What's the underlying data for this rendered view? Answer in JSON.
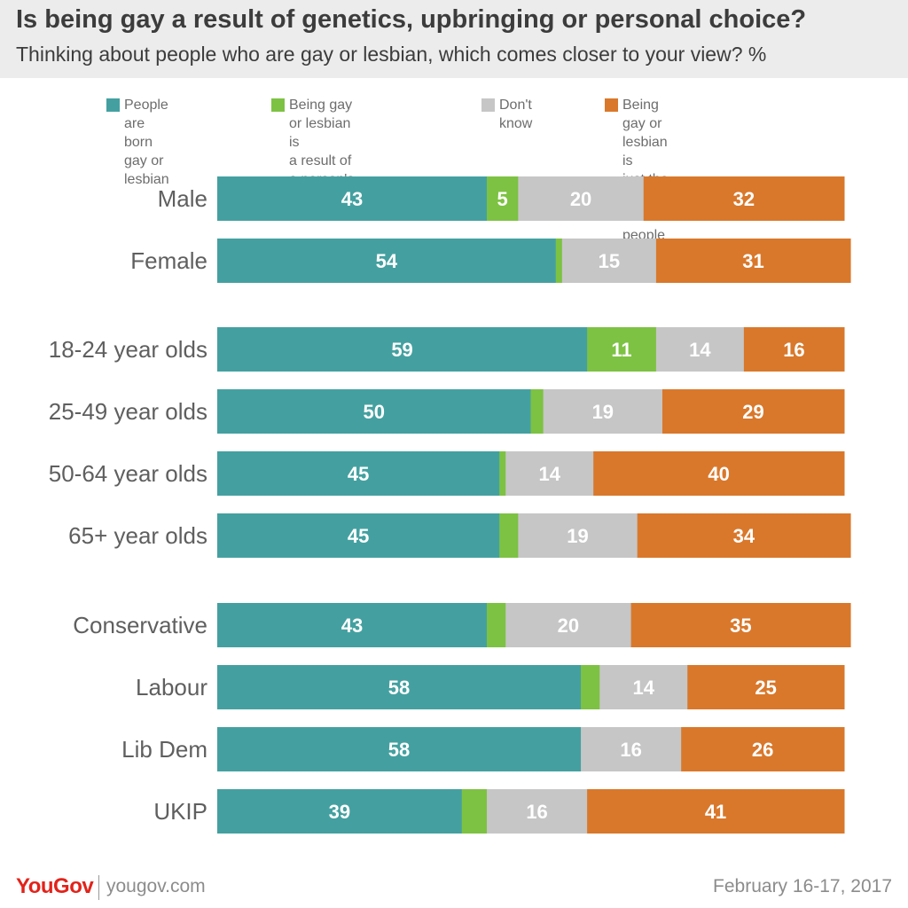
{
  "title": "Is being gay a result of genetics, upbringing or personal choice?",
  "subtitle": "Thinking about people who are gay or lesbian, which comes closer to your view? %",
  "colors": {
    "born": "#44a0a0",
    "upbringing": "#7dc243",
    "dont_know": "#c6c6c6",
    "choice": "#d9782b",
    "label_text": "#5f5f5f",
    "value_text": "#ffffff"
  },
  "legend": [
    {
      "label": "People are born\ngay or lesbian",
      "color_key": "born"
    },
    {
      "label": "Being gay or lesbian is\na result of a person's\nupbringing",
      "color_key": "upbringing"
    },
    {
      "label": "Don't know",
      "color_key": "dont_know"
    },
    {
      "label": "Being gay or lesbian is\njust the way some\npeople choose to live",
      "color_key": "choice"
    }
  ],
  "chart_data": {
    "type": "bar",
    "orientation": "horizontal",
    "stacked": true,
    "unit": "%",
    "categories": [
      "Male",
      "Female",
      "18-24 year olds",
      "25-49 year olds",
      "50-64 year olds",
      "65+ year olds",
      "Conservative",
      "Labour",
      "Lib Dem",
      "UKIP"
    ],
    "groups": [
      [
        "Male",
        "Female"
      ],
      [
        "18-24 year olds",
        "25-49 year olds",
        "50-64 year olds",
        "65+ year olds"
      ],
      [
        "Conservative",
        "Labour",
        "Lib Dem",
        "UKIP"
      ]
    ],
    "series": [
      {
        "name": "People are born gay or lesbian",
        "color_key": "born",
        "values": [
          43,
          54,
          59,
          50,
          45,
          45,
          43,
          58,
          58,
          39
        ]
      },
      {
        "name": "Being gay or lesbian is a result of a person's upbringing",
        "color_key": "upbringing",
        "values": [
          5,
          1,
          11,
          2,
          1,
          3,
          3,
          3,
          0,
          4
        ]
      },
      {
        "name": "Don't know",
        "color_key": "dont_know",
        "values": [
          20,
          15,
          14,
          19,
          14,
          19,
          20,
          14,
          16,
          16
        ]
      },
      {
        "name": "Being gay or lesbian is just the way some people choose to live",
        "color_key": "choice",
        "values": [
          32,
          31,
          16,
          29,
          40,
          34,
          35,
          25,
          26,
          41
        ]
      }
    ],
    "data_labels": [
      [
        "43",
        "5",
        "20",
        "32"
      ],
      [
        "54",
        "",
        "15",
        "31"
      ],
      [
        "59",
        "11",
        "14",
        "16"
      ],
      [
        "50",
        "",
        "19",
        "29"
      ],
      [
        "45",
        "",
        "14",
        "40"
      ],
      [
        "45",
        "",
        "19",
        "34"
      ],
      [
        "43",
        "",
        "20",
        "35"
      ],
      [
        "58",
        "",
        "14",
        "25"
      ],
      [
        "58",
        "",
        "16",
        "26"
      ],
      [
        "39",
        "",
        "16",
        "41"
      ]
    ],
    "legend_position": "top",
    "grid": false
  },
  "footer": {
    "logo": "YouGov",
    "url": "yougov.com",
    "date": "February 16-17, 2017"
  }
}
